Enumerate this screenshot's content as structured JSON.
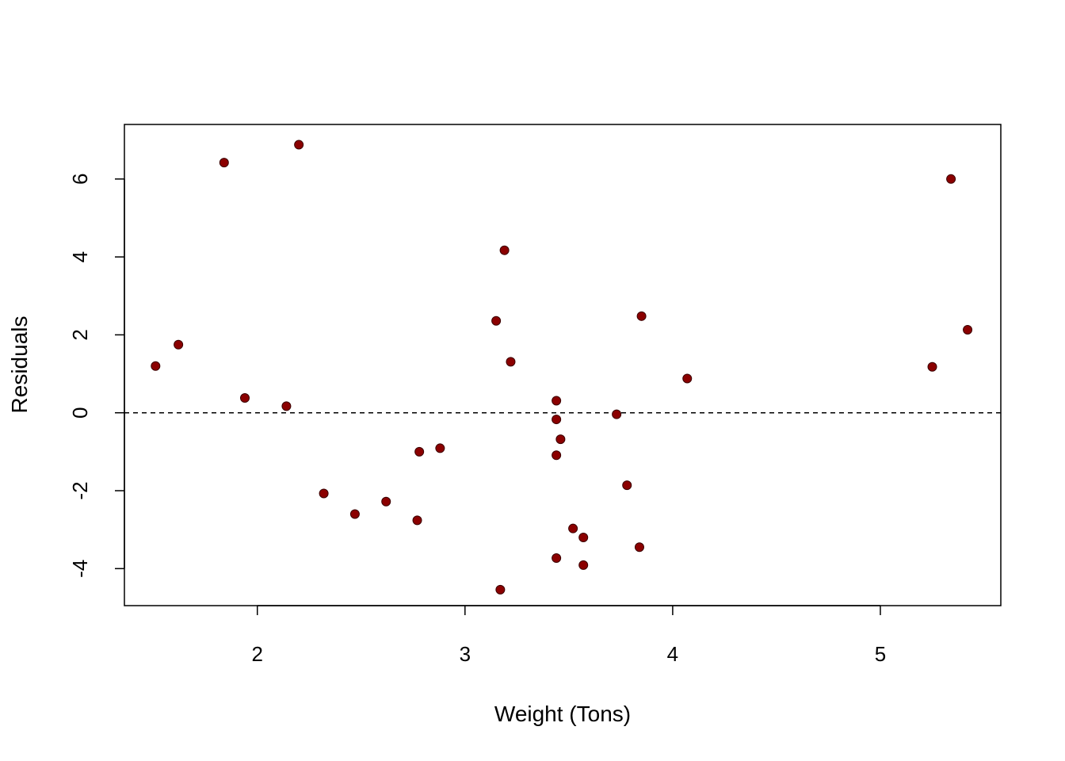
{
  "chart_data": {
    "type": "scatter",
    "title": "",
    "xlabel": "Weight (Tons)",
    "ylabel": "Residuals",
    "xlim": [
      1.36,
      5.58
    ],
    "ylim": [
      -4.95,
      7.4
    ],
    "xticks": [
      2,
      3,
      4,
      5
    ],
    "yticks": [
      -4,
      -2,
      0,
      2,
      4,
      6
    ],
    "reference_line": {
      "y": 0,
      "style": "dashed"
    },
    "point_color": "#8B0000",
    "grid": false,
    "legend": "none",
    "series": [
      {
        "x": [
          1.51,
          1.62,
          1.84,
          1.94,
          2.14,
          2.2,
          2.32,
          2.47,
          2.62,
          2.77,
          2.78,
          2.88,
          3.15,
          3.17,
          3.19,
          3.22,
          3.44,
          3.44,
          3.44,
          3.44,
          3.46,
          3.52,
          3.57,
          3.57,
          3.73,
          3.78,
          3.84,
          3.85,
          4.07,
          5.25,
          5.34,
          5.42
        ],
        "y": [
          1.2,
          1.75,
          6.42,
          0.38,
          0.17,
          6.88,
          -2.07,
          -2.6,
          -2.28,
          -2.76,
          -1.0,
          -0.91,
          2.36,
          -4.54,
          4.17,
          1.31,
          0.31,
          -0.17,
          -1.09,
          -3.73,
          -0.68,
          -2.97,
          -3.2,
          -3.91,
          -0.04,
          -1.86,
          -3.45,
          2.48,
          0.88,
          1.18,
          6.0,
          2.13
        ]
      }
    ]
  }
}
